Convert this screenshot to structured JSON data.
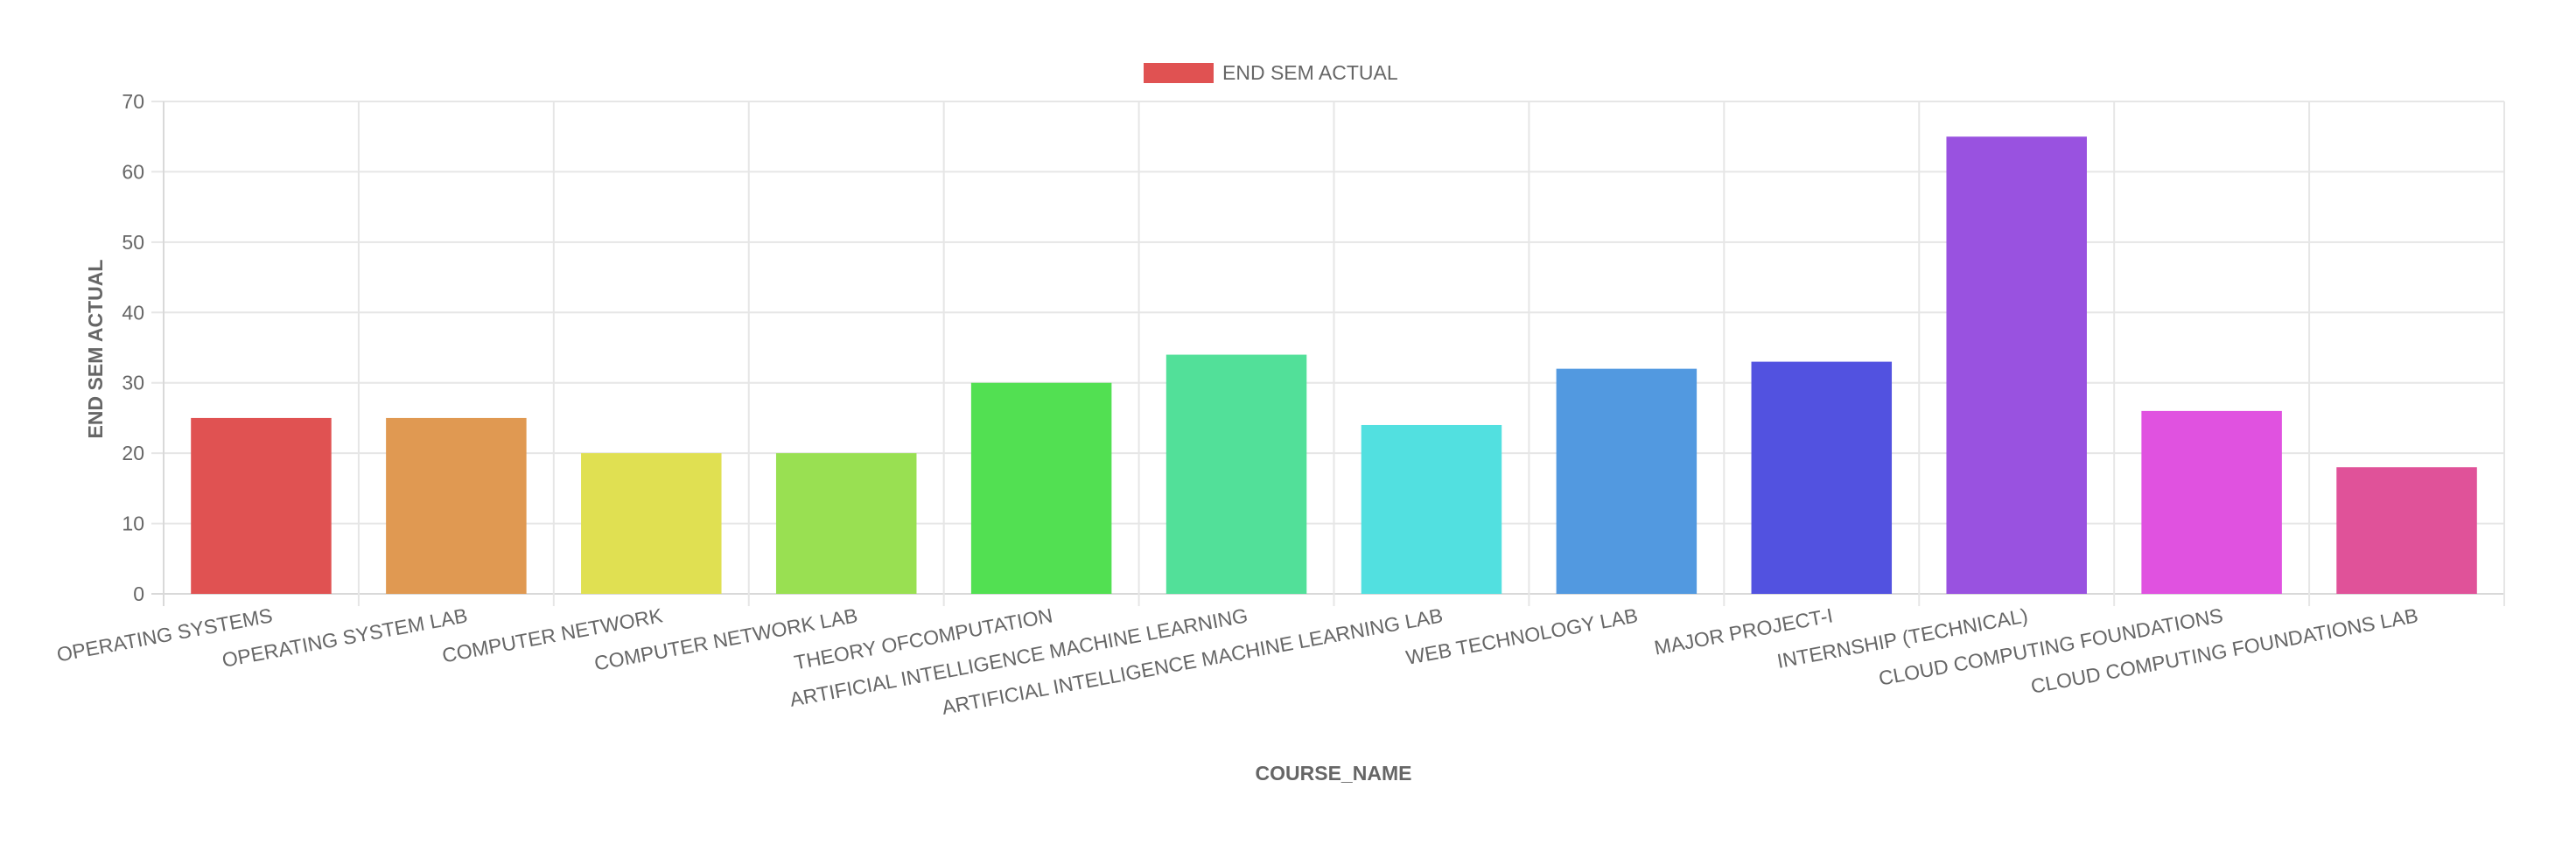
{
  "chart_data": {
    "type": "bar",
    "categories": [
      "OPERATING SYSTEMS",
      "OPERATING SYSTEM LAB",
      "COMPUTER NETWORK",
      "COMPUTER NETWORK LAB",
      "THEORY OFCOMPUTATION",
      "ARTIFICIAL INTELLIGENCE MACHINE LEARNING",
      "ARTIFICIAL INTELLIGENCE MACHINE LEARNING LAB",
      "WEB TECHNOLOGY LAB",
      "MAJOR PROJECT-I",
      "INTERNSHIP (TECHNICAL)",
      "CLOUD COMPUTING FOUNDATIONS",
      "CLOUD COMPUTING FOUNDATIONS LAB"
    ],
    "series": [
      {
        "name": "END SEM ACTUAL",
        "values": [
          25,
          25,
          20,
          20,
          30,
          34,
          24,
          32,
          33,
          65,
          26,
          18
        ],
        "colors": [
          "#e05252",
          "#e09952",
          "#e0e052",
          "#99e052",
          "#52e052",
          "#52e099",
          "#52e0e0",
          "#5299e0",
          "#5252e0",
          "#9952e0",
          "#e052e0",
          "#e05299"
        ]
      }
    ],
    "legend_color": "#e05252",
    "xlabel": "COURSE_NAME",
    "ylabel": "END SEM ACTUAL",
    "ylim": [
      0,
      70
    ],
    "yticks": [
      0,
      10,
      20,
      30,
      40,
      50,
      60,
      70
    ],
    "grid": true,
    "legend_position": "top-center"
  }
}
